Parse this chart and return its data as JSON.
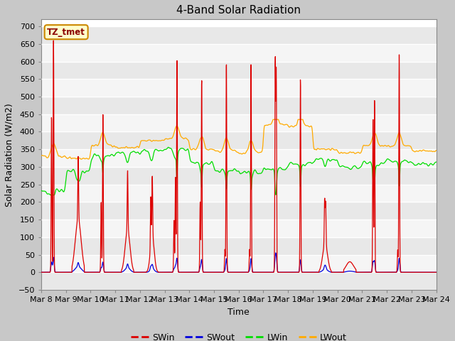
{
  "title": "4-Band Solar Radiation",
  "ylabel": "Solar Radiation (W/m2)",
  "xlabel": "Time",
  "ylim": [
    -50,
    720
  ],
  "yticks": [
    -50,
    0,
    50,
    100,
    150,
    200,
    250,
    300,
    350,
    400,
    450,
    500,
    550,
    600,
    650,
    700
  ],
  "label_box": "TZ_tmet",
  "colors": {
    "SWin": "#dd0000",
    "SWout": "#0000dd",
    "LWin": "#00dd00",
    "LWout": "#ffaa00"
  },
  "n_days": 16,
  "start_day": 8,
  "figsize": [
    6.4,
    4.8
  ],
  "dpi": 100
}
